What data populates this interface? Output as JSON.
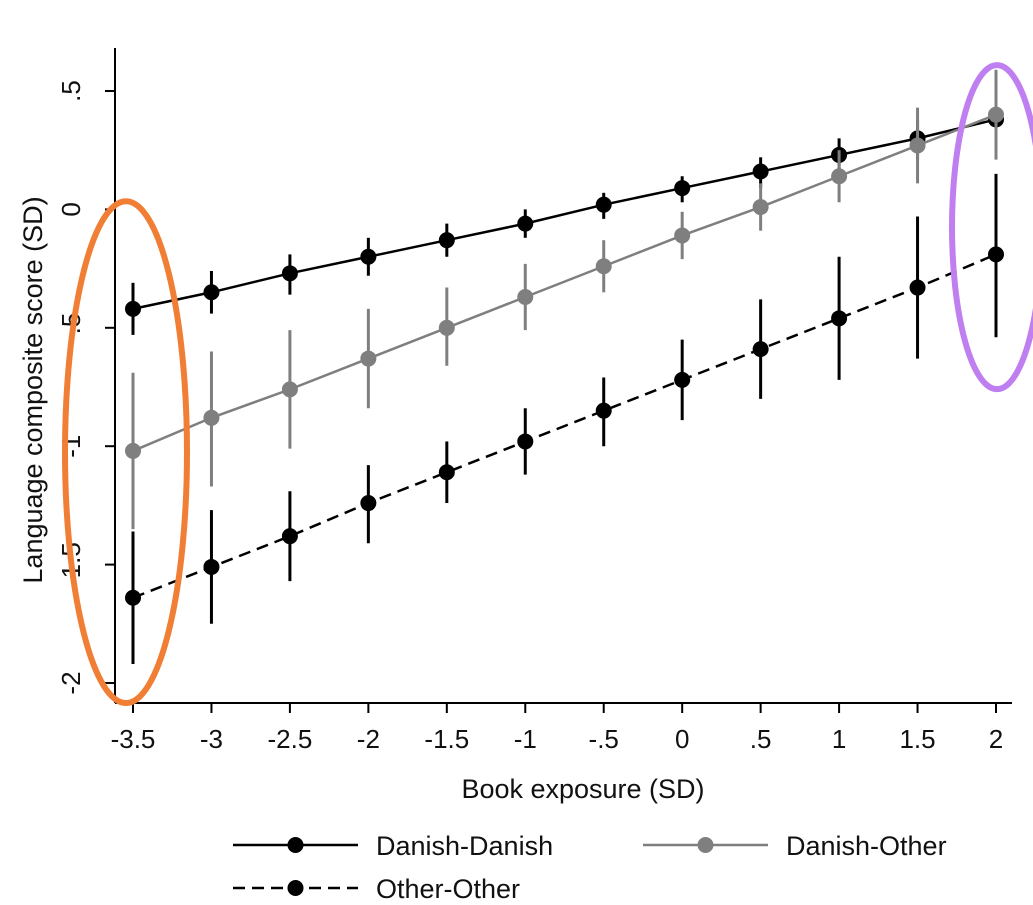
{
  "chart_data": {
    "type": "line",
    "xlabel": "Book exposure (SD)",
    "ylabel": "Language composite score (SD)",
    "xlim": [
      -3.5,
      2
    ],
    "ylim": [
      -2,
      0.5
    ],
    "x_ticks": [
      -3.5,
      -3,
      -2.5,
      -2,
      -1.5,
      -1,
      -0.5,
      0,
      0.5,
      1,
      1.5,
      2
    ],
    "x_tick_labels": [
      "-3.5",
      "-3",
      "-2.5",
      "-2",
      "-1.5",
      "-1",
      "-.5",
      "0",
      ".5",
      "1",
      "1.5",
      "2"
    ],
    "y_ticks": [
      -2,
      -1.5,
      -1,
      -0.5,
      0,
      0.5
    ],
    "y_tick_labels": [
      "-2",
      "-1.5",
      "-1",
      "-.5",
      "0",
      ".5"
    ],
    "x": [
      -3.5,
      -3,
      -2.5,
      -2,
      -1.5,
      -1,
      -0.5,
      0,
      0.5,
      1,
      1.5,
      2
    ],
    "series": [
      {
        "name": "Danish-Danish",
        "color": "#000000",
        "dash": "solid",
        "values": [
          -0.42,
          -0.35,
          -0.27,
          -0.2,
          -0.13,
          -0.06,
          0.02,
          0.09,
          0.16,
          0.23,
          0.3,
          0.38
        ],
        "ci_low": [
          -0.53,
          -0.44,
          -0.36,
          -0.28,
          -0.2,
          -0.12,
          -0.04,
          0.03,
          0.09,
          0.15,
          0.21,
          0.27
        ],
        "ci_high": [
          -0.31,
          -0.26,
          -0.19,
          -0.12,
          -0.06,
          0.0,
          0.07,
          0.14,
          0.22,
          0.3,
          0.38,
          0.49
        ]
      },
      {
        "name": "Danish-Other",
        "color": "#7f7f7f",
        "dash": "solid",
        "values": [
          -1.02,
          -0.88,
          -0.76,
          -0.63,
          -0.5,
          -0.37,
          -0.24,
          -0.11,
          0.01,
          0.14,
          0.27,
          0.4
        ],
        "ci_low": [
          -1.35,
          -1.17,
          -1.01,
          -0.84,
          -0.66,
          -0.51,
          -0.35,
          -0.21,
          -0.09,
          0.03,
          0.11,
          0.21
        ],
        "ci_high": [
          -0.69,
          -0.6,
          -0.51,
          -0.42,
          -0.33,
          -0.23,
          -0.13,
          -0.01,
          0.11,
          0.25,
          0.43,
          0.59
        ]
      },
      {
        "name": "Other-Other",
        "color": "#000000",
        "dash": "dashed",
        "values": [
          -1.64,
          -1.51,
          -1.38,
          -1.24,
          -1.11,
          -0.98,
          -0.85,
          -0.72,
          -0.59,
          -0.46,
          -0.33,
          -0.19
        ],
        "ci_low": [
          -1.92,
          -1.75,
          -1.57,
          -1.41,
          -1.24,
          -1.12,
          -1.0,
          -0.89,
          -0.8,
          -0.72,
          -0.63,
          -0.54
        ],
        "ci_high": [
          -1.36,
          -1.27,
          -1.19,
          -1.08,
          -0.98,
          -0.84,
          -0.71,
          -0.55,
          -0.38,
          -0.2,
          -0.03,
          0.15
        ]
      }
    ],
    "legend": {
      "placement": "bottom",
      "entries": [
        "Danish-Danish",
        "Danish-Other",
        "Other-Other"
      ]
    },
    "grid": false,
    "annotations": [
      {
        "shape": "ellipse",
        "color": "#f07f35",
        "around_x": -3.5,
        "y_from": -2,
        "y_to": -0.05
      },
      {
        "shape": "ellipse",
        "color": "#bf7ff0",
        "around_x": 2,
        "y_from": -0.7,
        "y_to": 0.55
      }
    ]
  }
}
